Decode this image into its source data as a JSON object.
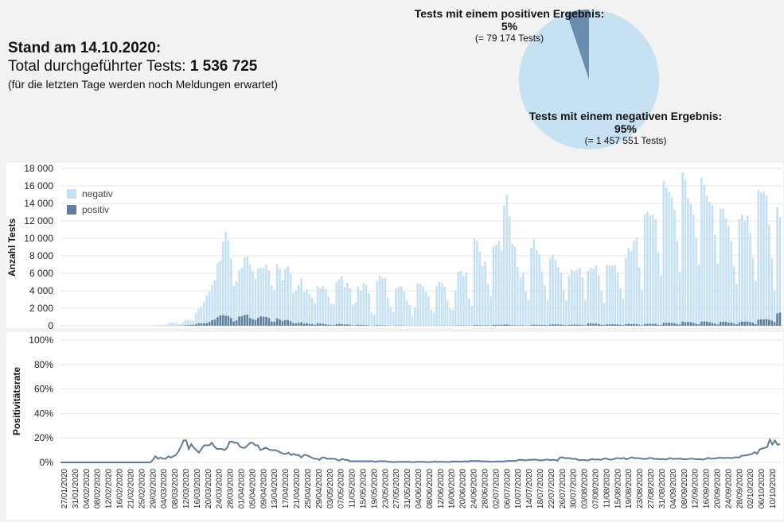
{
  "header": {
    "stand_label": "Stand am 14.10.2020:",
    "total_prefix": "Total durchgeführter Tests: ",
    "total_value": "1 536 725",
    "note": "(für die letzten Tage werden noch Meldungen erwartet)"
  },
  "pie": {
    "positive_title": "Tests mit einem positiven Ergebnis:",
    "positive_pct": "5%",
    "positive_count": "(= 79 174 Tests)",
    "negative_title": "Tests mit einem negativen Ergebnis:",
    "negative_pct": "95%",
    "negative_count": "(= 1 457 551 Tests)",
    "positive_fraction": 0.0515,
    "positive_color": "#6b8eb0",
    "negative_color": "#c6e2f2"
  },
  "colors": {
    "negativ": "#c6e2f2",
    "positiv": "#5f7f9e",
    "line": "#5f7b96",
    "grid": "#e6e6e6",
    "background": "#f2f2f2",
    "panel": "#ffffff"
  },
  "chart_data": [
    {
      "type": "bar",
      "stacked": true,
      "ylabel": "Anzahl Tests",
      "ylim": [
        0,
        18000
      ],
      "yticks": [
        "0",
        "2 000",
        "4 000",
        "6 000",
        "8 000",
        "10 000",
        "12 000",
        "14 000",
        "16 000",
        "18 000"
      ],
      "legend": {
        "position": "top-left",
        "entries": [
          "negativ",
          "positiv"
        ]
      },
      "x_start": "24/01/2020",
      "x_end": "13/10/2020",
      "series": [
        {
          "name": "negativ",
          "values": [
            0,
            0,
            0,
            0,
            0,
            0,
            0,
            0,
            0,
            0,
            0,
            0,
            0,
            0,
            0,
            0,
            0,
            0,
            0,
            0,
            0,
            0,
            0,
            0,
            0,
            0,
            0,
            0,
            0,
            0,
            0,
            0,
            0,
            30,
            40,
            60,
            80,
            90,
            100,
            190,
            270,
            380,
            360,
            240,
            200,
            360,
            570,
            590,
            460,
            500,
            1330,
            1640,
            1910,
            2430,
            3170,
            3480,
            4020,
            4500,
            6150,
            6260,
            8440,
            9560,
            8650,
            6800,
            4090,
            4450,
            5260,
            5510,
            6570,
            6660,
            6080,
            5520,
            4720,
            5600,
            5530,
            5560,
            6020,
            5470,
            4130,
            3580,
            6230,
            5810,
            4670,
            5830,
            6140,
            5440,
            3460,
            3670,
            4350,
            5030,
            3630,
            3870,
            3450,
            3040,
            2420,
            4280,
            4040,
            4280,
            4060,
            3190,
            2440,
            2380,
            4850,
            5120,
            5520,
            4290,
            4780,
            4210,
            2370,
            2630,
            4360,
            3860,
            4840,
            4650,
            3690,
            1490,
            1200,
            5040,
            5660,
            5450,
            5420,
            3160,
            2110,
            1530,
            4220,
            4400,
            4470,
            3870,
            2910,
            2390,
            1130,
            2090,
            4810,
            4790,
            4480,
            3860,
            3360,
            1820,
            1450,
            4490,
            5020,
            4850,
            4460,
            2910,
            1930,
            1800,
            4000,
            6110,
            6240,
            5670,
            6040,
            3080,
            2260,
            9890,
            9650,
            8430,
            6820,
            7260,
            4760,
            3390,
            9000,
            9170,
            9600,
            8510,
            13640,
            14850,
            12410,
            9280,
            9020,
            6700,
            5540,
            6020,
            3890,
            2900,
            8810,
            9750,
            8590,
            8110,
            6160,
            4550,
            2820,
            7630,
            8000,
            7410,
            6620,
            5960,
            4050,
            2890,
            5630,
            6280,
            6100,
            6290,
            6510,
            5440,
            2900,
            6020,
            6360,
            6270,
            6690,
            5600,
            3850,
            2540,
            6820,
            6730,
            6700,
            6810,
            5910,
            4220,
            3010,
            7570,
            8660,
            8360,
            9550,
            9840,
            6560,
            3960,
            12560,
            12840,
            12380,
            12500,
            11960,
            8300,
            5740,
            16230,
            15520,
            14970,
            14480,
            12970,
            9530,
            5950,
            17080,
            16260,
            14180,
            13550,
            12400,
            9840,
            6830,
            16490,
            15640,
            14430,
            13750,
            13500,
            10140,
            6930,
            12930,
            12970,
            11810,
            11090,
            9320,
            6640,
            4600,
            11820,
            12250,
            11510,
            12120,
            10170,
            7370,
            4950,
            14870,
            14500,
            14580,
            14110,
            10900,
            7100,
            3620,
            12180,
            10910
          ]
        },
        {
          "name": "positiv",
          "values": [
            0,
            0,
            0,
            0,
            0,
            0,
            0,
            0,
            0,
            0,
            0,
            0,
            0,
            0,
            0,
            0,
            0,
            0,
            0,
            0,
            0,
            0,
            0,
            0,
            0,
            0,
            0,
            0,
            0,
            0,
            0,
            0,
            0,
            0,
            0,
            0,
            2,
            5,
            3,
            7,
            9,
            13,
            17,
            10,
            10,
            23,
            57,
            85,
            99,
            110,
            170,
            280,
            270,
            270,
            290,
            430,
            640,
            710,
            980,
            1180,
            1210,
            1150,
            1100,
            880,
            470,
            630,
            1060,
            1100,
            1220,
            1280,
            880,
            750,
            660,
            920,
            1080,
            1050,
            1010,
            890,
            480,
            460,
            840,
            730,
            540,
            640,
            660,
            530,
            310,
            280,
            330,
            410,
            230,
            300,
            230,
            180,
            110,
            290,
            240,
            240,
            160,
            110,
            80,
            60,
            180,
            220,
            190,
            150,
            150,
            120,
            40,
            40,
            130,
            90,
            90,
            60,
            50,
            12,
            13,
            70,
            60,
            40,
            40,
            21,
            14,
            7,
            40,
            30,
            30,
            20,
            10,
            9,
            2,
            10,
            20,
            20,
            20,
            10,
            10,
            5,
            3,
            20,
            20,
            20,
            20,
            6,
            6,
            5,
            30,
            30,
            30,
            30,
            40,
            10,
            10,
            80,
            70,
            60,
            40,
            50,
            50,
            20,
            110,
            100,
            110,
            110,
            120,
            150,
            100,
            70,
            50,
            40,
            40,
            50,
            30,
            20,
            100,
            130,
            100,
            100,
            90,
            100,
            60,
            130,
            150,
            170,
            140,
            140,
            90,
            50,
            100,
            130,
            150,
            120,
            120,
            100,
            40,
            250,
            270,
            230,
            250,
            200,
            120,
            90,
            170,
            160,
            170,
            170,
            160,
            110,
            80,
            180,
            210,
            180,
            200,
            190,
            110,
            60,
            190,
            220,
            240,
            210,
            220,
            110,
            90,
            320,
            320,
            350,
            290,
            300,
            190,
            150,
            480,
            390,
            430,
            400,
            330,
            230,
            170,
            470,
            490,
            460,
            400,
            320,
            240,
            140,
            440,
            450,
            450,
            350,
            360,
            260,
            160,
            390,
            470,
            460,
            480,
            410,
            350,
            190,
            690,
            730,
            720,
            770,
            690,
            600,
            420,
            1400,
            1520,
            1600,
            1760,
            1860,
            1250,
            610,
            2010,
            2040
          ]
        }
      ]
    },
    {
      "type": "line",
      "ylabel": "Positivitätsrate",
      "ylim": [
        0,
        100
      ],
      "yticks": [
        "0%",
        "20%",
        "40%",
        "60%",
        "80%",
        "100%"
      ],
      "xticks": [
        "27/01/2020",
        "31/01/2020",
        "04/02/2020",
        "08/02/2020",
        "12/02/2020",
        "16/02/2020",
        "21/02/2020",
        "25/02/2020",
        "29/02/2020",
        "04/03/2020",
        "08/03/2020",
        "12/03/2020",
        "16/03/2020",
        "20/03/2020",
        "24/03/2020",
        "28/03/2020",
        "01/04/2020",
        "05/04/2020",
        "09/04/2020",
        "13/04/2020",
        "17/04/2020",
        "21/04/2020",
        "25/04/2020",
        "29/04/2020",
        "03/05/2020",
        "07/05/2020",
        "11/05/2020",
        "15/05/2020",
        "19/05/2020",
        "23/05/2020",
        "27/05/2020",
        "31/05/2020",
        "04/06/2020",
        "08/06/2020",
        "12/06/2020",
        "16/06/2020",
        "20/06/2020",
        "24/06/2020",
        "28/06/2020",
        "02/07/2020",
        "06/07/2020",
        "10/07/2020",
        "14/07/2020",
        "18/07/2020",
        "22/07/2020",
        "26/07/2020",
        "30/07/2020",
        "03/08/2020",
        "07/08/2020",
        "11/08/2020",
        "15/08/2020",
        "19/08/2020",
        "23/08/2020",
        "27/08/2020",
        "31/08/2020",
        "04/09/2020",
        "08/09/2020",
        "12/09/2020",
        "16/09/2020",
        "20/09/2020",
        "24/09/2020",
        "28/09/2020",
        "02/10/2020",
        "06/10/2020",
        "10/10/2020"
      ],
      "series": [
        {
          "name": "Positivitätsrate",
          "values": [
            0.0,
            0.0,
            0.0,
            0.0,
            0.0,
            0.0,
            0.0,
            0.0,
            0.0,
            0.0,
            0.0,
            0.0,
            0.0,
            0.0,
            0.0,
            0.0,
            0.0,
            0.0,
            0.0,
            0.0,
            0.0,
            0.0,
            0.0,
            0.0,
            0.0,
            0.0,
            0.0,
            0.0,
            0.0,
            0.0,
            0.0,
            0.0,
            0.0,
            0.0,
            0.0,
            0.0,
            2.0,
            5.0,
            3.0,
            4.0,
            3.0,
            3.0,
            5.0,
            4.0,
            5.0,
            6.0,
            9.0,
            13.0,
            18.0,
            18.0,
            11.0,
            15.0,
            12.0,
            10.0,
            8.0,
            11.0,
            14.0,
            14.0,
            14.0,
            16.0,
            13.0,
            11.0,
            11.0,
            11.0,
            10.0,
            12.0,
            17.0,
            17.0,
            16.0,
            16.0,
            13.0,
            12.0,
            12.0,
            14.0,
            16.0,
            16.0,
            14.0,
            14.0,
            10.0,
            11.0,
            12.0,
            11.0,
            10.0,
            10.0,
            10.0,
            9.0,
            8.0,
            7.0,
            7.0,
            8.0,
            6.0,
            7.0,
            6.0,
            6.0,
            4.0,
            6.0,
            6.0,
            5.0,
            4.0,
            3.0,
            3.0,
            2.0,
            4.0,
            4.0,
            3.0,
            3.0,
            3.0,
            3.0,
            2.0,
            1.5,
            3.0,
            2.0,
            2.0,
            1.0,
            1.0,
            1.0,
            1.0,
            1.0,
            1.0,
            1.0,
            1.0,
            1.0,
            1.0,
            0.5,
            1.0,
            1.0,
            1.0,
            1.0,
            0.5,
            0.5,
            0.2,
            0.5,
            0.5,
            0.5,
            0.5,
            0.5,
            0.5,
            0.3,
            0.2,
            0.5,
            0.5,
            0.5,
            0.5,
            0.2,
            0.3,
            0.3,
            0.7,
            0.5,
            0.5,
            0.5,
            0.5,
            0.3,
            0.4,
            0.8,
            0.7,
            0.7,
            0.6,
            0.7,
            1.0,
            0.6,
            1.2,
            1.1,
            1.1,
            1.3,
            0.9,
            1.0,
            0.8,
            0.8,
            0.6,
            0.6,
            0.7,
            0.8,
            0.8,
            0.7,
            1.1,
            1.3,
            1.2,
            1.2,
            1.4,
            2.1,
            2.1,
            1.7,
            1.8,
            2.2,
            2.1,
            2.3,
            2.2,
            1.7,
            1.7,
            2.0,
            2.4,
            1.9,
            2.1,
            2.0,
            1.4,
            4.0,
            4.1,
            3.5,
            3.6,
            3.4,
            2.8,
            3.0,
            2.2,
            1.8,
            2.0,
            1.8,
            1.6,
            2.5,
            2.6,
            2.3,
            2.4,
            2.1,
            2.9,
            3.3,
            2.5,
            2.3,
            2.7,
            3.4,
            3.4,
            3.1,
            3.6,
            2.5,
            3.3,
            4.2,
            3.6,
            3.5,
            3.5,
            2.9,
            2.9,
            2.9,
            3.7,
            3.4,
            2.8,
            2.9,
            2.6,
            2.8,
            2.4,
            2.7,
            3.5,
            2.9,
            2.9,
            2.9,
            3.2,
            2.6,
            2.6,
            2.8,
            3.0,
            3.1,
            2.6,
            2.7,
            2.6,
            2.3,
            3.0,
            3.7,
            3.0,
            3.1,
            3.4,
            3.8,
            3.8,
            3.5,
            3.7,
            3.7,
            3.5,
            3.9,
            4.3,
            3.9,
            5.5,
            5.6,
            5.9,
            6.4,
            6.9,
            8.5,
            7.0,
            10.6,
            11.4,
            11.9,
            12.6,
            18.8,
            14.7,
            17.9,
            14.4,
            15.0
          ]
        }
      ]
    }
  ]
}
